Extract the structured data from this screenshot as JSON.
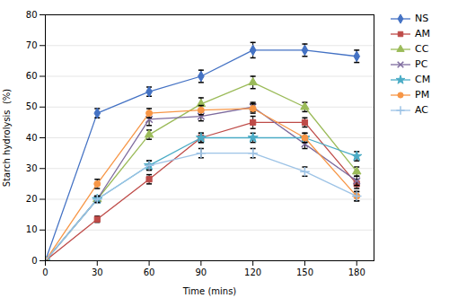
{
  "chart_data": {
    "type": "line",
    "xlabel": "Time (mins)",
    "ylabel": "Starch hydrolysis  (%)",
    "x": [
      0,
      30,
      60,
      90,
      120,
      150,
      180
    ],
    "series": [
      {
        "name": "NS",
        "color": "#4472C4",
        "marker": "diamond",
        "values": [
          0,
          48,
          55,
          60,
          68.5,
          68.5,
          66.5
        ],
        "errors": [
          0,
          1.5,
          1.5,
          2.0,
          2.5,
          2.0,
          2.0
        ]
      },
      {
        "name": "AM",
        "color": "#BE4B48",
        "marker": "square",
        "values": [
          0,
          13.5,
          26.5,
          40,
          45,
          45,
          25
        ],
        "errors": [
          0,
          1.0,
          1.5,
          1.5,
          2.0,
          1.5,
          1.5
        ]
      },
      {
        "name": "CC",
        "color": "#9BBB59",
        "marker": "triangle",
        "values": [
          0,
          20,
          41,
          51,
          58,
          50,
          29
        ],
        "errors": [
          0,
          1.0,
          1.5,
          2.0,
          2.0,
          1.5,
          1.5
        ]
      },
      {
        "name": "PC",
        "color": "#7E6B9E",
        "marker": "times",
        "values": [
          0,
          20,
          46,
          47,
          50,
          38,
          26
        ],
        "errors": [
          0,
          1.0,
          2.0,
          1.5,
          1.5,
          1.5,
          1.5
        ]
      },
      {
        "name": "CM",
        "color": "#4BACC6",
        "marker": "star",
        "values": [
          0,
          20,
          31,
          40,
          40,
          40,
          34
        ],
        "errors": [
          0,
          1.0,
          1.5,
          1.5,
          1.5,
          1.5,
          1.5
        ]
      },
      {
        "name": "PM",
        "color": "#F79646",
        "marker": "circle",
        "values": [
          0,
          25,
          48,
          49,
          49.5,
          40,
          21
        ],
        "errors": [
          0,
          1.5,
          1.5,
          1.5,
          1.5,
          1.5,
          1.5
        ]
      },
      {
        "name": "AC",
        "color": "#9DC3E6",
        "marker": "plus",
        "values": [
          0,
          20,
          31,
          35,
          35,
          29,
          21
        ],
        "errors": [
          0,
          1.0,
          1.5,
          1.5,
          1.5,
          1.5,
          1.5
        ]
      }
    ],
    "xlim": [
      0,
      190
    ],
    "ylim": [
      0,
      80
    ],
    "xticks": [
      0,
      30,
      60,
      90,
      120,
      150,
      180
    ],
    "yticks": [
      0,
      10,
      20,
      30,
      40,
      50,
      60,
      70,
      80
    ],
    "grid": "y",
    "legend": "right"
  }
}
